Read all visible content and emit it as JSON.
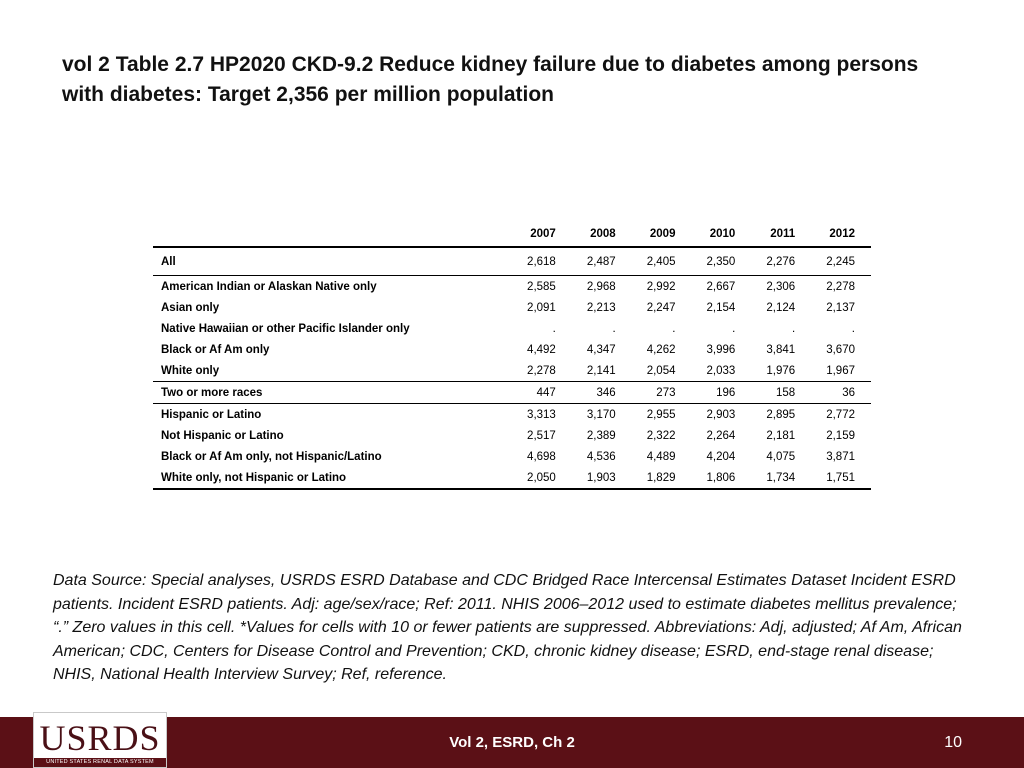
{
  "slide": {
    "title": "vol 2 Table 2.7  HP2020 CKD-9.2 Reduce kidney failure due to diabetes among persons with diabetes: Target 2,356 per million population"
  },
  "table": {
    "label_header": "",
    "years": [
      "2007",
      "2008",
      "2009",
      "2010",
      "2011",
      "2012"
    ],
    "rows": [
      {
        "label": "All",
        "values": [
          "2,618",
          "2,487",
          "2,405",
          "2,350",
          "2,276",
          "2,245"
        ]
      },
      {
        "label": "American Indian or Alaskan Native only",
        "values": [
          "2,585",
          "2,968",
          "2,992",
          "2,667",
          "2,306",
          "2,278"
        ]
      },
      {
        "label": "Asian only",
        "values": [
          "2,091",
          "2,213",
          "2,247",
          "2,154",
          "2,124",
          "2,137"
        ]
      },
      {
        "label": "Native Hawaiian or other Pacific Islander only",
        "values": [
          ".",
          ".",
          ".",
          ".",
          ".",
          "."
        ]
      },
      {
        "label": "Black or Af Am only",
        "values": [
          "4,492",
          "4,347",
          "4,262",
          "3,996",
          "3,841",
          "3,670"
        ]
      },
      {
        "label": "White only",
        "values": [
          "2,278",
          "2,141",
          "2,054",
          "2,033",
          "1,976",
          "1,967"
        ]
      },
      {
        "label": "Two or more races",
        "values": [
          "447",
          "346",
          "273",
          "196",
          "158",
          "36"
        ]
      },
      {
        "label": "Hispanic or Latino",
        "values": [
          "3,313",
          "3,170",
          "2,955",
          "2,903",
          "2,895",
          "2,772"
        ]
      },
      {
        "label": "Not Hispanic or Latino",
        "values": [
          "2,517",
          "2,389",
          "2,322",
          "2,264",
          "2,181",
          "2,159"
        ]
      },
      {
        "label": "Black or Af Am only, not Hispanic/Latino",
        "values": [
          "4,698",
          "4,536",
          "4,489",
          "4,204",
          "4,075",
          "3,871"
        ]
      },
      {
        "label": "White only, not Hispanic or Latino",
        "values": [
          "2,050",
          "1,903",
          "1,829",
          "1,806",
          "1,734",
          "1,751"
        ]
      }
    ]
  },
  "footnote": "Data Source: Special analyses, USRDS ESRD Database and CDC Bridged Race Intercensal Estimates Dataset Incident ESRD patients. Incident ESRD patients. Adj: age/sex/race; Ref: 2011. NHIS 2006–2012 used to estimate diabetes mellitus prevalence; “.” Zero values in this cell. *Values for cells with 10 or fewer patients are suppressed. Abbreviations: Adj, adjusted; Af Am, African American; CDC, Centers for Disease Control and Prevention; CKD, chronic kidney disease; ESRD, end-stage renal disease; NHIS, National Health Interview Survey; Ref, reference.",
  "footer": {
    "logo_text": "USRDS",
    "logo_subtext": "UNITED STATES RENAL DATA SYSTEM",
    "center_text": "Vol 2, ESRD, Ch 2",
    "page_number": "10",
    "bar_color": "#5b1016"
  }
}
